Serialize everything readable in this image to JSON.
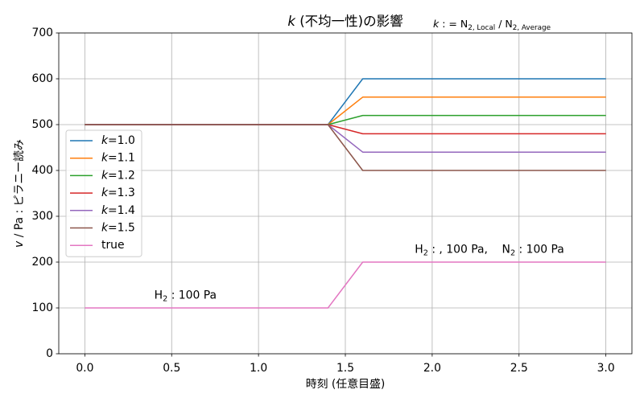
{
  "chart_data": {
    "type": "line",
    "title": [
      {
        "text": "k",
        "italic": true
      },
      {
        "text": " (不均一性)の影響"
      }
    ],
    "note": [
      {
        "text": "k",
        "italic": true
      },
      {
        "text": " : = N"
      },
      {
        "text": "2, Local",
        "sub": true
      },
      {
        "text": " / N"
      },
      {
        "text": "2, Average",
        "sub": true
      }
    ],
    "xlabel": "時刻 (任意目盛)",
    "ylabel": [
      {
        "text": "v",
        "italic": true
      },
      {
        "text": " / Pa : ピラニー読み"
      }
    ],
    "xlim": [
      -0.15,
      3.15
    ],
    "ylim": [
      0,
      700
    ],
    "xticks": [
      0,
      0.5,
      1.0,
      1.5,
      2.0,
      2.5,
      3.0
    ],
    "xtick_labels": [
      "0.0",
      "0.5",
      "1.0",
      "1.5",
      "2.0",
      "2.5",
      "3.0"
    ],
    "yticks": [
      0,
      100,
      200,
      300,
      400,
      500,
      600,
      700
    ],
    "ytick_labels": [
      "0",
      "100",
      "200",
      "300",
      "400",
      "500",
      "600",
      "700"
    ],
    "grid": true,
    "legend_position": "left",
    "x": [
      0.0,
      1.4,
      1.6,
      3.0
    ],
    "series": [
      {
        "name": "k=1.0",
        "color": "#1f77b4",
        "values": [
          500,
          500,
          600,
          600
        ]
      },
      {
        "name": "k=1.1",
        "color": "#ff7f0e",
        "values": [
          500,
          500,
          560,
          560
        ]
      },
      {
        "name": "k=1.2",
        "color": "#2ca02c",
        "values": [
          500,
          500,
          520,
          520
        ]
      },
      {
        "name": "k=1.3",
        "color": "#d62728",
        "values": [
          500,
          500,
          480,
          480
        ]
      },
      {
        "name": "k=1.4",
        "color": "#9467bd",
        "values": [
          500,
          500,
          440,
          440
        ]
      },
      {
        "name": "k=1.5",
        "color": "#8c564b",
        "values": [
          500,
          500,
          400,
          400
        ]
      },
      {
        "name": "true",
        "color": "#e377c2",
        "values": [
          100,
          100,
          200,
          200
        ]
      }
    ],
    "annotations": [
      [
        {
          "text": "H"
        },
        {
          "text": "2",
          "sub": true
        },
        {
          "text": " : 100 Pa"
        }
      ],
      [
        {
          "text": "H"
        },
        {
          "text": "2",
          "sub": true
        },
        {
          "text": " : , 100 Pa,    N"
        },
        {
          "text": "2",
          "sub": true
        },
        {
          "text": " : 100 Pa"
        }
      ]
    ]
  }
}
